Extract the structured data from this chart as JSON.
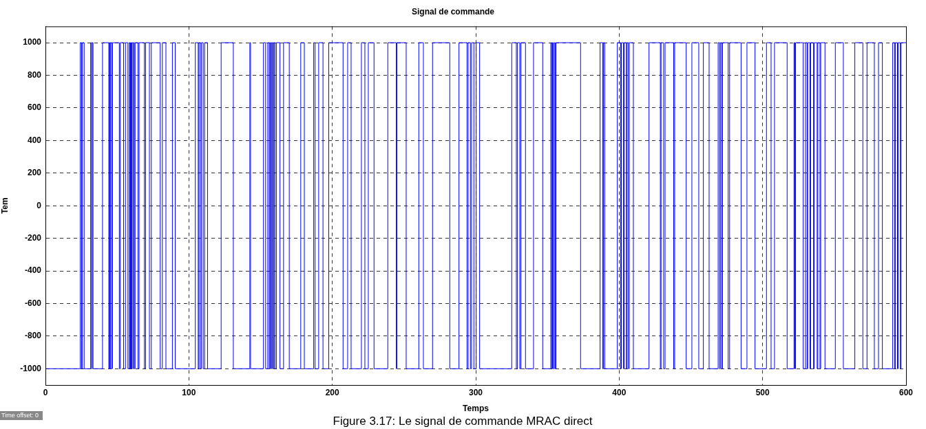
{
  "chart_data": {
    "type": "step",
    "title": "Signal de commande",
    "xlabel": "Temps",
    "ylabel": "Tem",
    "annotations": [
      "Figure 3.17: Le signal de commande MRAC direct",
      "Time offset: 0"
    ],
    "xlim": [
      0,
      600
    ],
    "xticks": [
      0,
      100,
      200,
      300,
      400,
      500,
      600
    ],
    "ylim": [
      -1100,
      1100
    ],
    "yticks": [
      -1000,
      -800,
      -600,
      -400,
      -200,
      0,
      200,
      400,
      600,
      800,
      1000
    ],
    "grid": true,
    "marker": "none",
    "line_style": "solid",
    "series": [
      {
        "color": "#0000ff",
        "x": [
          0,
          24.3,
          25.2,
          25.8,
          27,
          31.5,
          32.2,
          32.6,
          33.2,
          39.8,
          44.2,
          44.5,
          45,
          45.3,
          46.3,
          46.7,
          51.5,
          52.2,
          54.5,
          55.8,
          57.5,
          58.5,
          59,
          59.3,
          59.8,
          60.2,
          61,
          61.4,
          62,
          62.5,
          64.5,
          65.3,
          69,
          69.8,
          72.5,
          73.8,
          80,
          81.5,
          84,
          88.5,
          90.5,
          104.5,
          106.5,
          107,
          108,
          108.8,
          110,
          111,
          113,
          122.5,
          131,
          142.5,
          143,
          152,
          153.5,
          155,
          156,
          156.5,
          157,
          157.4,
          158,
          158.3,
          159,
          159.3,
          160,
          161,
          163.5,
          166,
          170,
          178,
          180.5,
          187,
          188,
          190.5,
          193.5,
          197.5,
          207.5,
          210.7,
          213.1,
          220.3,
          222.7,
          225.1,
          229.1,
          238.7,
          244.6,
          245,
          251.5,
          260.3,
          263.5,
          269.9,
          281.9,
          288.3,
          293.9,
          294.7,
          296.3,
          297.1,
          298.7,
          300.3,
          302.7,
          325.1,
          328.3,
          329.1,
          330.7,
          331.5,
          334.7,
          340.3,
          346.7,
          352.3,
          353,
          353.5,
          354.2,
          354.7,
          355.4,
          356,
          373.1,
          386.7,
          388.5,
          389,
          389.9,
          398.7,
          401,
          401.5,
          403,
          403.5,
          405,
          405.5,
          406.5,
          407,
          409.9,
          420.8,
          428.7,
          429.2,
          431,
          432,
          438,
          438.7,
          446.7,
          450.7,
          455.5,
          458.7,
          462.7,
          469,
          470,
          470.5,
          471.5,
          472,
          476,
          477,
          485,
          489.1,
          494.7,
          502.7,
          505.9,
          508.3,
          517.1,
          521.9,
          522.5,
          523,
          528.3,
          529.9,
          531,
          531.5,
          533,
          533.5,
          535.5,
          536,
          538,
          538.5,
          540,
          540.5,
          543.5,
          550.7,
          556.3,
          564.3,
          569.9,
          572.8,
          577.9,
          580.8,
          583.5,
          590.7,
          592,
          592.5,
          594,
          594.5,
          596,
          596.5,
          600
        ],
        "values": [
          -1000,
          1000,
          -1000,
          1000,
          -1000,
          1000,
          -1000,
          1000,
          -1000,
          1000,
          -1000,
          1000,
          -1000,
          1000,
          -1000,
          1000,
          -1000,
          1000,
          -1000,
          1000,
          -1000,
          1000,
          -1000,
          1000,
          -1000,
          1000,
          -1000,
          1000,
          -1000,
          1000,
          -1000,
          1000,
          -1000,
          1000,
          -1000,
          1000,
          -1000,
          1000,
          -1000,
          1000,
          -1000,
          1000,
          -1000,
          1000,
          -1000,
          1000,
          -1000,
          1000,
          -1000,
          1000,
          -1000,
          1000,
          -1000,
          1000,
          -1000,
          1000,
          -1000,
          1000,
          -1000,
          1000,
          -1000,
          1000,
          -1000,
          1000,
          -1000,
          1000,
          -1000,
          1000,
          -1000,
          1000,
          -1000,
          1000,
          -1000,
          1000,
          -1000,
          1000,
          -1000,
          1000,
          -1000,
          1000,
          -1000,
          1000,
          -1000,
          1000,
          -1000,
          1000,
          -1000,
          1000,
          -1000,
          1000,
          -1000,
          1000,
          -1000,
          1000,
          -1000,
          1000,
          -1000,
          1000,
          -1000,
          1000,
          -1000,
          1000,
          -1000,
          1000,
          -1000,
          1000,
          -1000,
          1000,
          -1000,
          1000,
          -1000,
          1000,
          -1000,
          1000,
          -1000,
          1000,
          -1000,
          1000,
          -1000,
          1000,
          -1000,
          1000,
          -1000,
          1000,
          -1000,
          1000,
          -1000,
          1000,
          -1000,
          1000,
          -1000,
          1000,
          -1000,
          1000,
          -1000,
          1000,
          -1000,
          1000,
          -1000,
          1000,
          -1000,
          1000,
          -1000,
          1000,
          -1000,
          1000,
          -1000,
          1000,
          -1000,
          1000,
          -1000,
          1000,
          -1000,
          1000,
          -1000,
          1000,
          -1000,
          1000,
          -1000,
          1000,
          -1000,
          1000,
          -1000,
          1000,
          -1000,
          1000,
          -1000,
          1000,
          -1000,
          1000,
          -1000,
          1000,
          -1000,
          1000,
          -1000,
          1000,
          -1000,
          1000,
          -1000,
          1000,
          -1000,
          1000,
          -1000,
          1000,
          -1000,
          1000,
          1000
        ]
      }
    ]
  }
}
